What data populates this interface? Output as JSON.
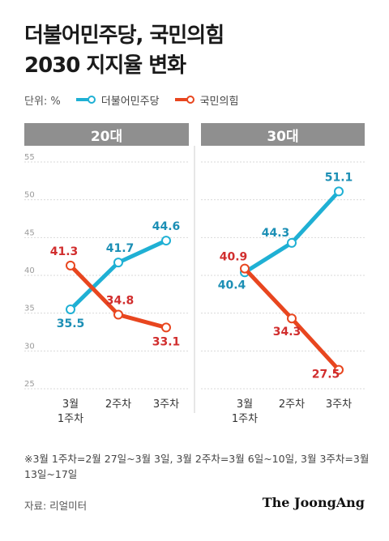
{
  "title": {
    "line1": "더불어민주당, 국민의힘",
    "line2": "2030 지지율 변화"
  },
  "legend": {
    "unit": "단위: %",
    "dem": "더불어민주당",
    "ppp": "국민의힘"
  },
  "colors": {
    "dem": "#1fb0d4",
    "ppp": "#e8461f",
    "ppp_label": "#d12e2e",
    "dem_label": "#1c8fb5",
    "grid": "#d9d9d9",
    "panel": "#8f8f8f"
  },
  "note": "※3월 1주차=2월 27일~3월 3일, 3월 2주차=3월 6일~10일, 3월 3주차=3월 13일~17일",
  "source": "자료: 리얼미터",
  "logo": "The JoongAng",
  "chart_data": [
    {
      "type": "line",
      "title": "20대",
      "categories": [
        [
          "3월",
          "1주차"
        ],
        [
          "2주차"
        ],
        [
          "3주차"
        ]
      ],
      "ylim": [
        25,
        55
      ],
      "yticks": [
        25,
        30,
        35,
        40,
        45,
        50,
        55
      ],
      "series": [
        {
          "name": "더불어민주당",
          "values": [
            35.5,
            41.7,
            44.6
          ]
        },
        {
          "name": "국민의힘",
          "values": [
            41.3,
            34.8,
            33.1
          ]
        }
      ]
    },
    {
      "type": "line",
      "title": "30대",
      "categories": [
        [
          "3월",
          "1주차"
        ],
        [
          "2주차"
        ],
        [
          "3주차"
        ]
      ],
      "ylim": [
        25,
        55
      ],
      "yticks": [
        25,
        30,
        35,
        40,
        45,
        50,
        55
      ],
      "series": [
        {
          "name": "더불어민주당",
          "values": [
            40.4,
            44.3,
            51.1
          ]
        },
        {
          "name": "국민의힘",
          "values": [
            40.9,
            34.3,
            27.5
          ]
        }
      ]
    }
  ]
}
